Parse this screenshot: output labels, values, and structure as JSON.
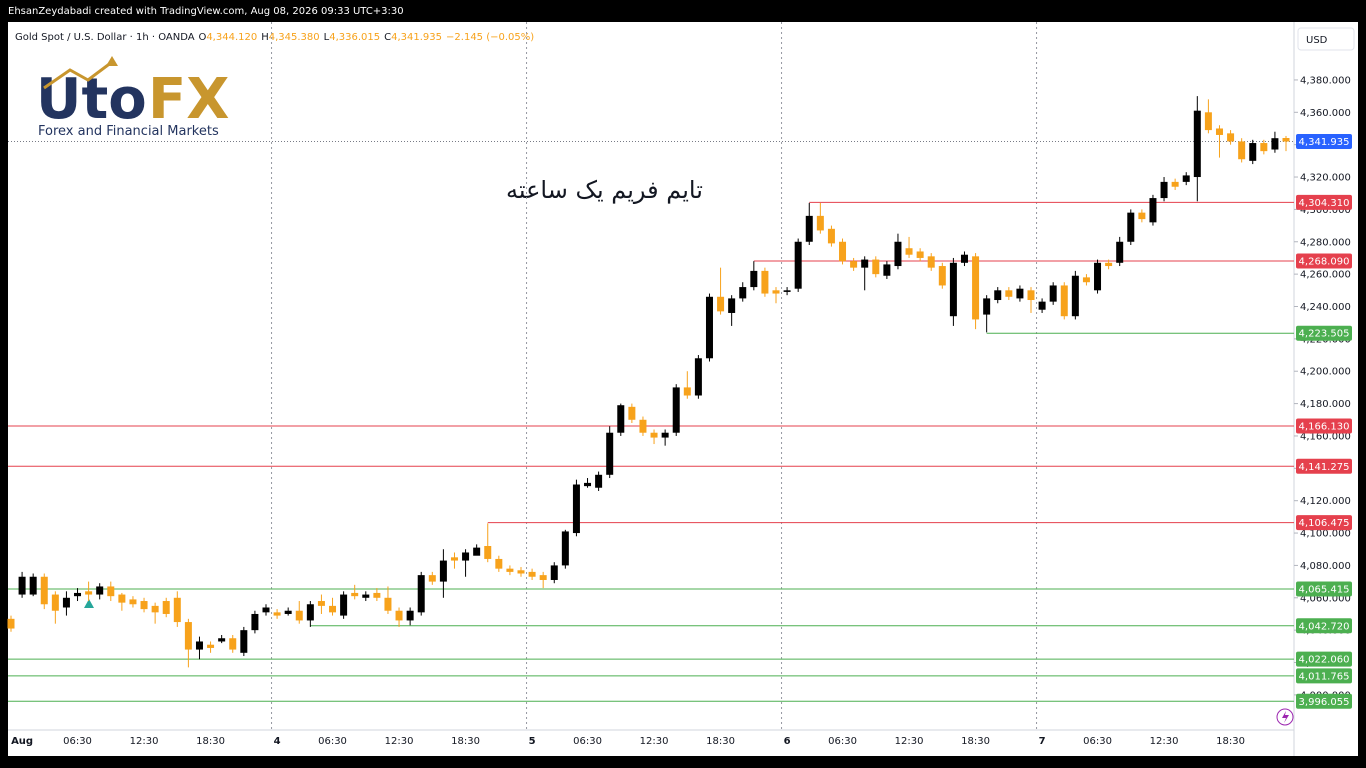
{
  "header": "EhsanZeydabadi created with TradingView.com, Aug 08, 2026 09:33 UTC+3:30",
  "legend": {
    "symbol": "Gold Spot / U.S. Dollar · 1h · OANDA",
    "fields": [
      {
        "key": "O",
        "value": "4,344.120"
      },
      {
        "key": "H",
        "value": "4,345.380"
      },
      {
        "key": "L",
        "value": "4,336.015"
      },
      {
        "key": "C",
        "value": "4,341.935"
      }
    ],
    "change": "−2.145 (−0.05%)"
  },
  "logo": {
    "brand_a": "Uto",
    "brand_b": "FX",
    "tagline": "Forex and Financial Markets"
  },
  "annotation": "تایم فریم یک ساعته",
  "currency": "USD",
  "chart_data": {
    "type": "candlestick",
    "categories": [
      null,
      "Aug",
      null,
      null,
      null,
      null,
      "06:30",
      null,
      null,
      null,
      null,
      null,
      "12:30",
      null,
      null,
      null,
      null,
      null,
      "18:30",
      null,
      null,
      null,
      null,
      null,
      "4",
      null,
      null,
      null,
      null,
      "06:30",
      null,
      null,
      null,
      null,
      null,
      "12:30",
      null,
      null,
      null,
      null,
      null,
      "18:30",
      null,
      null,
      null,
      null,
      null,
      "5",
      null,
      null,
      null,
      null,
      "06:30",
      null,
      null,
      null,
      null,
      null,
      "12:30",
      null,
      null,
      null,
      null,
      null,
      "18:30",
      null,
      null,
      null,
      null,
      null,
      "6",
      null,
      null,
      null,
      null,
      "06:30",
      null,
      null,
      null,
      null,
      null,
      "12:30",
      null,
      null,
      null,
      null,
      null,
      "18:30",
      null,
      null,
      null,
      null,
      null,
      "7",
      null,
      null,
      null,
      null,
      "06:30",
      null,
      null,
      null,
      null,
      null,
      "12:30",
      null,
      null,
      null,
      null,
      null,
      "18:30",
      null,
      null,
      null,
      null,
      null
    ],
    "open": [
      4047,
      4062,
      4062,
      4073,
      4062,
      4054,
      4061,
      4064,
      4062,
      4067,
      4062,
      4059,
      4058,
      4055,
      4058,
      4060,
      4045,
      4028,
      4031,
      4033,
      4035,
      4026,
      4040,
      4051,
      4051,
      4050,
      4052,
      4046,
      4058,
      4055,
      4049,
      4063,
      4060,
      4063,
      4060,
      4052,
      4046,
      4051,
      4074,
      4070,
      4085,
      4083,
      4086,
      4092,
      4084,
      4078,
      4077,
      4076,
      4074,
      4071,
      4080,
      4100,
      4129,
      4128,
      4136,
      4162,
      4178,
      4170,
      4162,
      4159,
      4162,
      4190,
      4185,
      4208,
      4246,
      4236,
      4245,
      4252,
      4262,
      4250,
      4249,
      4251,
      4280,
      4296,
      4288,
      4280,
      4268,
      4264,
      4269,
      4259,
      4265,
      4276,
      4274,
      4271,
      4265,
      4234,
      4267,
      4271,
      4235,
      4244,
      4250,
      4245,
      4250,
      4238,
      4243,
      4253,
      4234,
      4258,
      4250,
      4267,
      4267,
      4280,
      4298,
      4292,
      4307,
      4317,
      4317,
      4320,
      4360,
      4350,
      4347,
      4342,
      4330,
      4341,
      4337,
      4344.12
    ],
    "high": [
      4049,
      4076,
      4075,
      4075,
      4064,
      4064,
      4066,
      4070,
      4069,
      4070,
      4063,
      4061,
      4060,
      4057,
      4060,
      4064,
      4047,
      4036,
      4033,
      4037,
      4037,
      4042,
      4052,
      4056,
      4053,
      4054,
      4058,
      4058,
      4062,
      4060,
      4064,
      4068,
      4064,
      4066,
      4067,
      4054,
      4054,
      4076,
      4076,
      4090,
      4088,
      4090,
      4093,
      4106,
      4086,
      4080,
      4079,
      4078,
      4076,
      4082,
      4102,
      4133,
      4134,
      4138,
      4166,
      4180,
      4180,
      4172,
      4164,
      4164,
      4192,
      4200,
      4210,
      4248,
      4264,
      4247,
      4255,
      4268,
      4264,
      4252,
      4252,
      4282,
      4304,
      4304,
      4290,
      4282,
      4270,
      4271,
      4271,
      4268,
      4285,
      4283,
      4276,
      4273,
      4267,
      4270,
      4274,
      4273,
      4247,
      4252,
      4252,
      4253,
      4252,
      4245,
      4255,
      4255,
      4262,
      4260,
      4269,
      4269,
      4283,
      4300,
      4300,
      4309,
      4320,
      4319,
      4323,
      4370,
      4368,
      4352,
      4349,
      4344,
      4343,
      4343,
      4348,
      4345.38
    ],
    "low": [
      4039,
      4060,
      4061,
      4053,
      4044,
      4049,
      4058,
      4058,
      4059,
      4058,
      4052,
      4054,
      4051,
      4044,
      4048,
      4042,
      4017,
      4022,
      4026,
      4032,
      4026,
      4024,
      4038,
      4049,
      4047,
      4049,
      4044,
      4042,
      4050,
      4049,
      4047,
      4059,
      4058,
      4058,
      4050,
      4042,
      4043,
      4049,
      4068,
      4060,
      4078,
      4073,
      4088,
      4082,
      4076,
      4074,
      4073,
      4071,
      4066,
      4069,
      4078,
      4098,
      4128,
      4126,
      4134,
      4160,
      4168,
      4160,
      4155,
      4154,
      4160,
      4183,
      4183,
      4206,
      4235,
      4228,
      4243,
      4250,
      4246,
      4242,
      4247,
      4249,
      4278,
      4285,
      4277,
      4266,
      4262,
      4250,
      4258,
      4257,
      4263,
      4270,
      4268,
      4262,
      4251,
      4228,
      4265,
      4226,
      4224,
      4242,
      4244,
      4243,
      4236,
      4236,
      4241,
      4232,
      4232,
      4253,
      4248,
      4263,
      4265,
      4278,
      4292,
      4290,
      4305,
      4312,
      4315,
      4305,
      4347,
      4332,
      4340,
      4329,
      4328,
      4334,
      4335,
      4336.015
    ],
    "close": [
      4041,
      4073,
      4073,
      4056,
      4052,
      4060,
      4063,
      4062,
      4067,
      4061,
      4057,
      4056,
      4053,
      4051,
      4050,
      4045,
      4028,
      4033,
      4029,
      4035,
      4028,
      4040,
      4050,
      4054,
      4049,
      4052,
      4046,
      4056,
      4055,
      4051,
      4062,
      4061,
      4062,
      4060,
      4052,
      4046,
      4052,
      4074,
      4070,
      4083,
      4083,
      4088,
      4091,
      4084,
      4078,
      4076,
      4075,
      4073,
      4071,
      4080,
      4101,
      4130,
      4131,
      4136,
      4162,
      4179,
      4170,
      4162,
      4159,
      4162,
      4190,
      4185,
      4208,
      4246,
      4237,
      4245,
      4252,
      4262,
      4248,
      4248,
      4250,
      4280,
      4296,
      4287,
      4279,
      4268,
      4264,
      4269,
      4260,
      4266,
      4280,
      4272,
      4270,
      4264,
      4253,
      4267,
      4272,
      4232,
      4245,
      4250,
      4246,
      4251,
      4244,
      4243,
      4253,
      4234,
      4259,
      4255,
      4267,
      4265,
      4280,
      4298,
      4294,
      4307,
      4317,
      4314,
      4321,
      4361,
      4349,
      4346,
      4342,
      4331,
      4341,
      4336,
      4344,
      4341.935
    ],
    "up_color": "#000000",
    "down_color": "#f7a21b",
    "ylim": [
      3978.3,
      4415.8
    ],
    "yticks": [
      {
        "value": 4000,
        "label": "4,000.000"
      },
      {
        "value": 4020,
        "label": "4,020.000"
      },
      {
        "value": 4040,
        "label": "4,040.000"
      },
      {
        "value": 4060,
        "label": "4,060.000"
      },
      {
        "value": 4080,
        "label": "4,080.000"
      },
      {
        "value": 4100,
        "label": "4,100.000"
      },
      {
        "value": 4120,
        "label": "4,120.000"
      },
      {
        "value": 4140,
        "label": "4,140.000"
      },
      {
        "value": 4160,
        "label": "4,160.000"
      },
      {
        "value": 4180,
        "label": "4,180.000"
      },
      {
        "value": 4200,
        "label": "4,200.000"
      },
      {
        "value": 4220,
        "label": "4,220.000"
      },
      {
        "value": 4240,
        "label": "4,240.000"
      },
      {
        "value": 4260,
        "label": "4,260.000"
      },
      {
        "value": 4280,
        "label": "4,280.000"
      },
      {
        "value": 4300,
        "label": "4,300.000"
      },
      {
        "value": 4320,
        "label": "4,320.000"
      },
      {
        "value": 4340,
        "label": "4,340.000"
      },
      {
        "value": 4360,
        "label": "4,360.000"
      },
      {
        "value": 4380,
        "label": "4,380.000"
      }
    ],
    "grid": false,
    "levels": [
      {
        "value": 4304.31,
        "label": "4,304.310",
        "color": "#e5404d"
      },
      {
        "value": 4268.09,
        "label": "4,268.090",
        "color": "#e5404d"
      },
      {
        "value": 4166.13,
        "label": "4,166.130",
        "color": "#e5404d"
      },
      {
        "value": 4141.275,
        "label": "4,141.275",
        "color": "#e5404d"
      },
      {
        "value": 4106.475,
        "label": "4,106.475",
        "color": "#e5404d"
      },
      {
        "value": 4223.505,
        "label": "4,223.505",
        "color": "#4caf50"
      },
      {
        "value": 4065.415,
        "label": "4,065.415",
        "color": "#4caf50"
      },
      {
        "value": 4042.72,
        "label": "4,042.720",
        "color": "#4caf50"
      },
      {
        "value": 4022.06,
        "label": "4,022.060",
        "color": "#4caf50"
      },
      {
        "value": 4011.765,
        "label": "4,011.765",
        "color": "#4caf50"
      },
      {
        "value": 3996.055,
        "label": "3,996.055",
        "color": "#4caf50"
      }
    ],
    "last_price": {
      "value": 4341.935,
      "label": "4,341.935",
      "color": "#2962ff"
    }
  }
}
